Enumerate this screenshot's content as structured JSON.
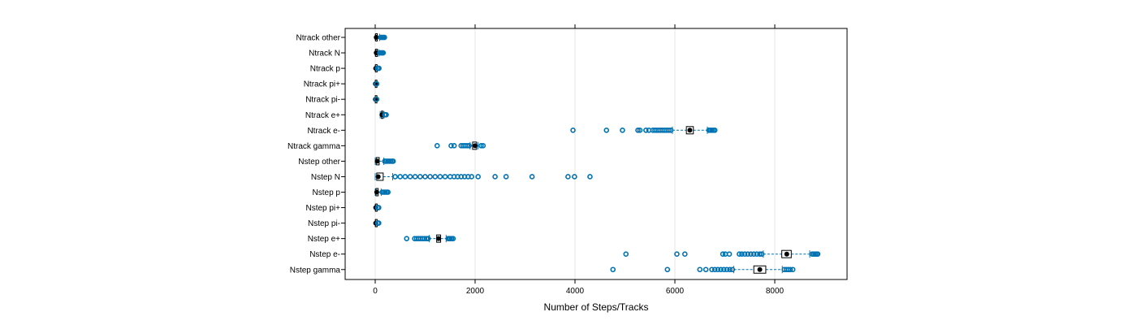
{
  "chart_data": {
    "type": "boxplot",
    "orientation": "horizontal",
    "xlabel": "Number of Steps/Tracks",
    "ylabel": "",
    "xlim": [
      -600,
      9500
    ],
    "xticks": [
      0,
      2000,
      4000,
      6000,
      8000
    ],
    "grid": "vertical",
    "colors": {
      "box": "#0072B2",
      "outlier": "#0072B2",
      "median_dot": "#000000",
      "grid": "#e6e6e6",
      "frame": "#000000"
    },
    "categories": [
      "Ntrack other",
      "Ntrack N",
      "Ntrack p",
      "Ntrack pi+",
      "Ntrack pi-",
      "Ntrack e+",
      "Ntrack e-",
      "Ntrack gamma",
      "Nstep other",
      "Nstep N",
      "Nstep p",
      "Nstep pi+",
      "Nstep pi-",
      "Nstep e+",
      "Nstep e-",
      "Nstep gamma"
    ],
    "boxes": [
      {
        "category": "Ntrack other",
        "whisker_low": 0,
        "q1": 10,
        "median": 20,
        "q3": 40,
        "whisker_high": 90,
        "outliers": [
          110,
          130,
          150,
          170,
          185
        ]
      },
      {
        "category": "Ntrack N",
        "whisker_low": 0,
        "q1": 10,
        "median": 20,
        "q3": 35,
        "whisker_high": 70,
        "outliers": [
          90,
          110,
          130,
          150,
          160
        ]
      },
      {
        "category": "Ntrack p",
        "whisker_low": 0,
        "q1": 5,
        "median": 10,
        "q3": 18,
        "whisker_high": 35,
        "outliers": [
          45,
          55,
          65,
          75
        ]
      },
      {
        "category": "Ntrack pi+",
        "whisker_low": 0,
        "q1": 2,
        "median": 4,
        "q3": 8,
        "whisker_high": 15,
        "outliers": [
          22,
          30
        ]
      },
      {
        "category": "Ntrack pi-",
        "whisker_low": 0,
        "q1": 2,
        "median": 4,
        "q3": 8,
        "whisker_high": 15,
        "outliers": [
          22,
          30
        ]
      },
      {
        "category": "Ntrack e+",
        "whisker_low": 100,
        "q1": 125,
        "median": 135,
        "q3": 150,
        "whisker_high": 180,
        "outliers": [
          190,
          200,
          210,
          220
        ]
      },
      {
        "category": "Ntrack e-",
        "whisker_low": 5950,
        "q1": 6230,
        "median": 6300,
        "q3": 6370,
        "whisker_high": 6650,
        "outliers": [
          3960,
          4630,
          4950,
          5260,
          5300,
          5420,
          5480,
          5560,
          5600,
          5640,
          5680,
          5720,
          5760,
          5800,
          5840,
          5880,
          5920,
          6680,
          6710,
          6740,
          6770,
          6800
        ]
      },
      {
        "category": "Ntrack gamma",
        "whisker_low": 1900,
        "q1": 1950,
        "median": 2000,
        "q3": 2030,
        "whisker_high": 2060,
        "outliers": [
          1240,
          1520,
          1580,
          1720,
          1760,
          1800,
          1840,
          1880,
          2120,
          2160
        ]
      },
      {
        "category": "Nstep other",
        "whisker_low": 0,
        "q1": 20,
        "median": 40,
        "q3": 80,
        "whisker_high": 170,
        "outliers": [
          190,
          220,
          250,
          280,
          310,
          340,
          360
        ]
      },
      {
        "category": "Nstep N",
        "whisker_low": 0,
        "q1": 30,
        "median": 60,
        "q3": 160,
        "whisker_high": 350,
        "outliers": [
          400,
          500,
          600,
          700,
          800,
          900,
          1000,
          1100,
          1200,
          1300,
          1400,
          1500,
          1580,
          1650,
          1720,
          1790,
          1860,
          1930,
          2060,
          2400,
          2620,
          3140,
          3860,
          3990,
          4300
        ]
      },
      {
        "category": "Nstep p",
        "whisker_low": 0,
        "q1": 15,
        "median": 30,
        "q3": 60,
        "whisker_high": 120,
        "outliers": [
          140,
          170,
          200,
          230,
          255
        ]
      },
      {
        "category": "Nstep pi+",
        "whisker_low": 0,
        "q1": 5,
        "median": 10,
        "q3": 20,
        "whisker_high": 40,
        "outliers": [
          50,
          60,
          70
        ]
      },
      {
        "category": "Nstep pi-",
        "whisker_low": 0,
        "q1": 5,
        "median": 10,
        "q3": 20,
        "whisker_high": 40,
        "outliers": [
          50,
          60,
          70
        ]
      },
      {
        "category": "Nstep e+",
        "whisker_low": 1080,
        "q1": 1230,
        "median": 1270,
        "q3": 1310,
        "whisker_high": 1420,
        "outliers": [
          630,
          790,
          830,
          870,
          910,
          950,
          990,
          1030,
          1060,
          1460,
          1480,
          1500,
          1530,
          1560
        ]
      },
      {
        "category": "Nstep e-",
        "whisker_low": 7770,
        "q1": 8140,
        "median": 8240,
        "q3": 8330,
        "whisker_high": 8700,
        "outliers": [
          5020,
          6040,
          6200,
          6960,
          7010,
          7090,
          7290,
          7340,
          7400,
          7460,
          7520,
          7580,
          7640,
          7700,
          7740,
          8750,
          8780,
          8810,
          8840,
          8860
        ]
      },
      {
        "category": "Nstep gamma",
        "whisker_low": 7180,
        "q1": 7580,
        "median": 7700,
        "q3": 7820,
        "whisker_high": 8150,
        "outliers": [
          4760,
          5850,
          6500,
          6620,
          6740,
          6800,
          6860,
          6920,
          6980,
          7040,
          7100,
          7150,
          8190,
          8230,
          8270,
          8310,
          8360
        ]
      }
    ]
  }
}
